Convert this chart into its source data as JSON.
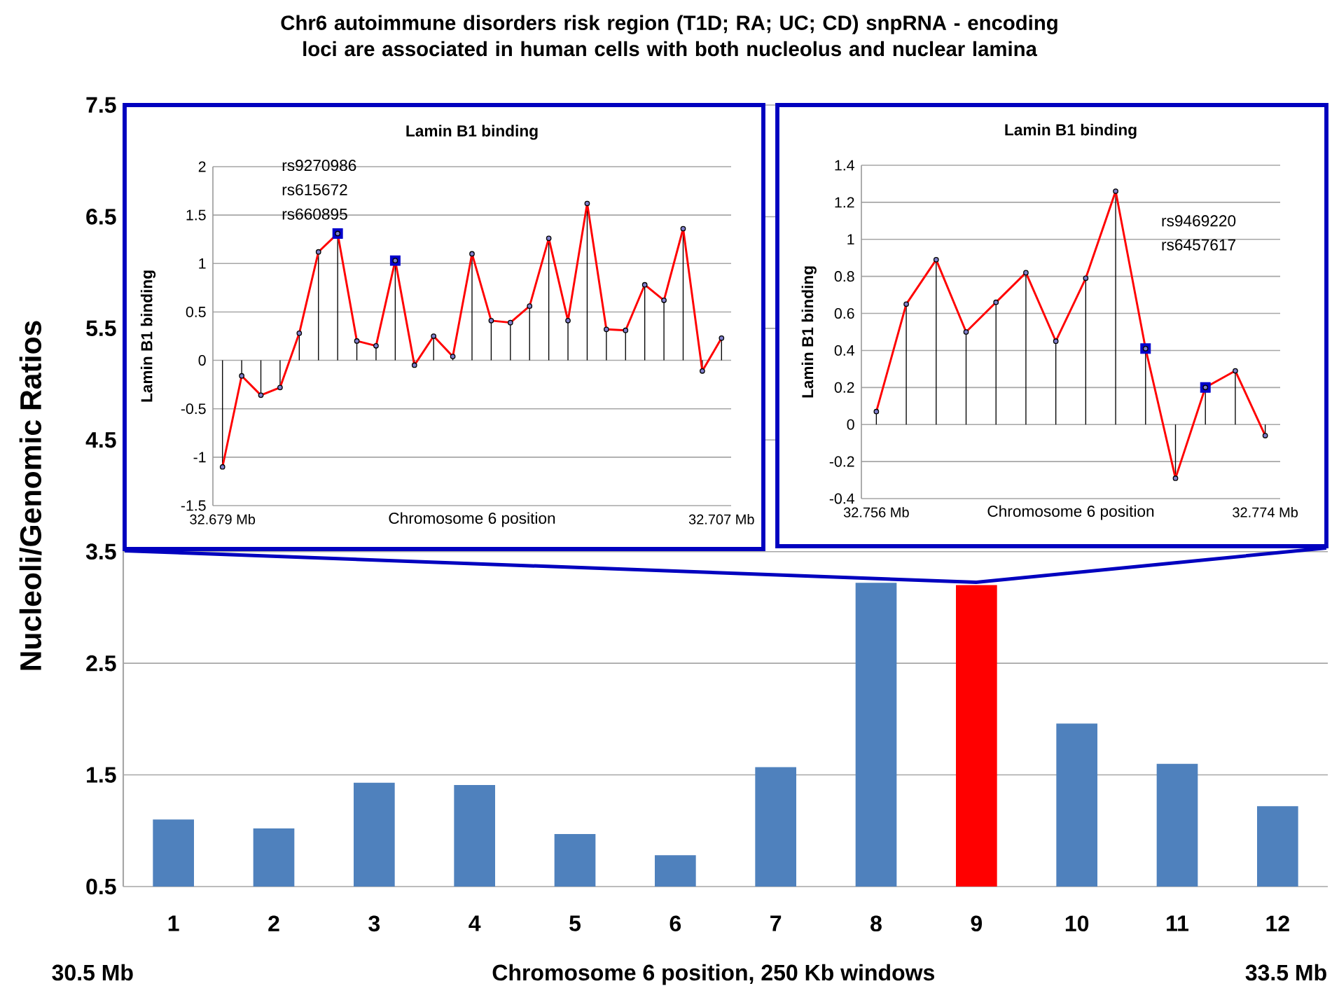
{
  "chart_data": [
    {
      "type": "bar",
      "title": "Chr6 autoimmune disorders risk region (T1D; RA; UC; CD) snpRNA - encoding loci are associated in human cells with both nucleolus and nuclear lamina",
      "xlabel": "Chromosome 6 position, 250 Kb windows",
      "ylabel": "Nucleoli/Genomic Ratios",
      "categories": [
        "1",
        "2",
        "3",
        "4",
        "5",
        "6",
        "7",
        "8",
        "9",
        "10",
        "11",
        "12"
      ],
      "values": [
        1.1,
        1.02,
        1.43,
        1.41,
        0.97,
        0.78,
        1.57,
        3.22,
        3.2,
        1.96,
        1.6,
        1.22
      ],
      "colors": [
        "#4f81bd",
        "#4f81bd",
        "#4f81bd",
        "#4f81bd",
        "#4f81bd",
        "#4f81bd",
        "#4f81bd",
        "#4f81bd",
        "#ff0000",
        "#4f81bd",
        "#4f81bd",
        "#4f81bd"
      ],
      "ylim": [
        0.5,
        7.5
      ],
      "yticks": [
        0.5,
        1.5,
        2.5,
        3.5,
        4.5,
        5.5,
        6.5,
        7.5
      ],
      "grid": "y",
      "annotations": [
        "30.5 Mb",
        "33.5 Mb"
      ]
    },
    {
      "type": "line",
      "title": "Lamin B1 binding",
      "xlabel": "Chromosome 6 position",
      "ylabel": "Lamin B1 binding",
      "categories": [
        "32.679 Mb",
        null,
        null,
        null,
        null,
        null,
        null,
        null,
        null,
        null,
        null,
        null,
        null,
        null,
        null,
        null,
        null,
        null,
        null,
        null,
        null,
        null,
        null,
        null,
        null,
        null,
        "32.707 Mb"
      ],
      "series": [
        {
          "type": "scatter",
          "color": "#0000cc",
          "marker": "square",
          "values": [
            null,
            null,
            null,
            null,
            null,
            null,
            1.31,
            null,
            null,
            1.03,
            null,
            null,
            null,
            null,
            null,
            null,
            null,
            null,
            null,
            null,
            null,
            null,
            null,
            null,
            null,
            null,
            null
          ]
        },
        {
          "type": "lollipop",
          "color": "#000000",
          "marker": "circle",
          "values": [
            -1.1,
            -0.16,
            -0.36,
            -0.28,
            0.28,
            1.12,
            1.31,
            0.2,
            0.15,
            1.03,
            -0.05,
            0.25,
            0.04,
            1.1,
            0.41,
            0.39,
            0.56,
            1.26,
            0.41,
            1.62,
            0.32,
            0.31,
            0.78,
            0.62,
            1.36,
            -0.11,
            0.23
          ]
        },
        {
          "type": "line",
          "color": "#ff0000",
          "values": [
            -1.1,
            -0.16,
            -0.36,
            -0.28,
            0.28,
            1.12,
            1.31,
            0.2,
            0.15,
            1.03,
            -0.05,
            0.25,
            0.04,
            1.1,
            0.41,
            0.39,
            0.56,
            1.26,
            0.41,
            1.62,
            0.32,
            0.31,
            0.78,
            0.62,
            1.36,
            -0.11,
            0.23
          ]
        }
      ],
      "ylim": [
        -1.5,
        2
      ],
      "yticks": [
        -1.5,
        -1,
        -0.5,
        0,
        0.5,
        1,
        1.5,
        2
      ],
      "grid": "y",
      "annotations": [
        "rs9270986",
        "rs615672",
        "rs660895"
      ]
    },
    {
      "type": "line",
      "title": "Lamin B1 binding",
      "xlabel": "Chromosome 6 position",
      "ylabel": "Lamin B1 binding",
      "categories": [
        "32.756 Mb",
        null,
        null,
        null,
        null,
        null,
        null,
        null,
        null,
        null,
        null,
        null,
        null,
        "32.774 Mb"
      ],
      "series": [
        {
          "type": "scatter",
          "color": "#0000cc",
          "marker": "square",
          "values": [
            null,
            null,
            null,
            null,
            null,
            null,
            null,
            null,
            null,
            0.41,
            null,
            0.2,
            null,
            null
          ]
        },
        {
          "type": "lollipop",
          "color": "#000000",
          "marker": "circle",
          "values": [
            0.07,
            0.65,
            0.89,
            0.5,
            0.66,
            0.82,
            0.45,
            0.79,
            1.26,
            0.41,
            -0.29,
            0.2,
            0.29,
            -0.06
          ]
        },
        {
          "type": "line",
          "color": "#ff0000",
          "values": [
            0.07,
            0.65,
            0.89,
            0.5,
            0.66,
            0.82,
            0.45,
            0.79,
            1.26,
            0.41,
            -0.29,
            0.2,
            0.29,
            -0.06
          ]
        }
      ],
      "ylim": [
        -0.4,
        1.4
      ],
      "yticks": [
        -0.4,
        -0.2,
        0,
        0.2,
        0.4,
        0.6,
        0.8,
        1,
        1.2,
        1.4
      ],
      "grid": "y",
      "annotations": [
        "rs9469220",
        "rs6457617"
      ]
    }
  ]
}
